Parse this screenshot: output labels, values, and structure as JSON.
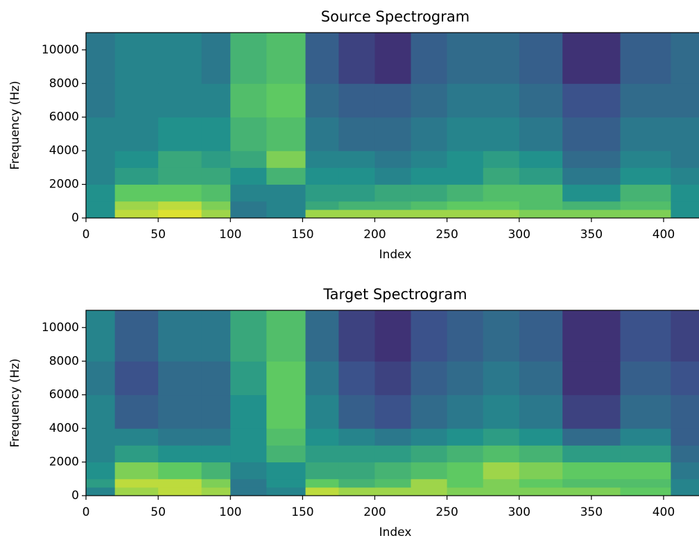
{
  "chart_data": [
    {
      "type": "heatmap",
      "title": "Source Spectrogram",
      "xlabel": "Index",
      "ylabel": "Frequency (Hz)",
      "colormap": "viridis",
      "xlim": [
        0,
        425
      ],
      "ylim": [
        0,
        11025
      ],
      "xticks": [
        0,
        50,
        100,
        150,
        200,
        250,
        300,
        350,
        400
      ],
      "yticks": [
        0,
        2000,
        4000,
        6000,
        8000,
        10000
      ],
      "x_edges": [
        0,
        20,
        50,
        80,
        100,
        125,
        152,
        175,
        200,
        225,
        250,
        275,
        300,
        330,
        370,
        405,
        425
      ],
      "y_edges": [
        0,
        500,
        1000,
        2000,
        3000,
        4000,
        6000,
        8000,
        11025
      ],
      "z": [
        [
          0.5,
          0.9,
          0.95,
          0.85,
          0.4,
          0.45,
          0.85,
          0.85,
          0.85,
          0.85,
          0.85,
          0.85,
          0.8,
          0.8,
          0.8,
          0.5
        ],
        [
          0.5,
          0.85,
          0.9,
          0.8,
          0.4,
          0.45,
          0.6,
          0.65,
          0.65,
          0.7,
          0.75,
          0.75,
          0.7,
          0.65,
          0.7,
          0.5
        ],
        [
          0.5,
          0.75,
          0.75,
          0.7,
          0.45,
          0.45,
          0.55,
          0.55,
          0.6,
          0.6,
          0.65,
          0.7,
          0.7,
          0.5,
          0.65,
          0.5
        ],
        [
          0.45,
          0.55,
          0.6,
          0.6,
          0.5,
          0.65,
          0.5,
          0.5,
          0.45,
          0.5,
          0.5,
          0.6,
          0.55,
          0.4,
          0.5,
          0.45
        ],
        [
          0.45,
          0.5,
          0.6,
          0.55,
          0.6,
          0.8,
          0.45,
          0.45,
          0.4,
          0.45,
          0.5,
          0.55,
          0.5,
          0.35,
          0.45,
          0.4
        ],
        [
          0.45,
          0.45,
          0.5,
          0.5,
          0.65,
          0.7,
          0.4,
          0.35,
          0.35,
          0.4,
          0.45,
          0.45,
          0.4,
          0.3,
          0.4,
          0.4
        ],
        [
          0.4,
          0.45,
          0.45,
          0.45,
          0.7,
          0.75,
          0.35,
          0.3,
          0.3,
          0.35,
          0.4,
          0.4,
          0.35,
          0.25,
          0.35,
          0.35
        ],
        [
          0.4,
          0.45,
          0.45,
          0.4,
          0.65,
          0.7,
          0.3,
          0.2,
          0.15,
          0.3,
          0.35,
          0.35,
          0.3,
          0.15,
          0.3,
          0.35
        ]
      ]
    },
    {
      "type": "heatmap",
      "title": "Target Spectrogram",
      "xlabel": "Index",
      "ylabel": "Frequency (Hz)",
      "colormap": "viridis",
      "xlim": [
        0,
        425
      ],
      "ylim": [
        0,
        11025
      ],
      "xticks": [
        0,
        50,
        100,
        150,
        200,
        250,
        300,
        350,
        400
      ],
      "yticks": [
        0,
        2000,
        4000,
        6000,
        8000,
        10000
      ],
      "x_edges": [
        0,
        20,
        50,
        80,
        100,
        125,
        152,
        175,
        200,
        225,
        250,
        275,
        300,
        330,
        370,
        405,
        425
      ],
      "y_edges": [
        0,
        500,
        1000,
        2000,
        3000,
        4000,
        6000,
        8000,
        11025
      ],
      "z": [
        [
          0.45,
          0.85,
          0.9,
          0.85,
          0.4,
          0.45,
          0.9,
          0.85,
          0.85,
          0.85,
          0.8,
          0.8,
          0.8,
          0.8,
          0.75,
          0.45
        ],
        [
          0.55,
          0.9,
          0.9,
          0.8,
          0.4,
          0.5,
          0.75,
          0.65,
          0.7,
          0.85,
          0.75,
          0.8,
          0.75,
          0.7,
          0.7,
          0.45
        ],
        [
          0.5,
          0.8,
          0.75,
          0.65,
          0.45,
          0.5,
          0.6,
          0.6,
          0.65,
          0.7,
          0.75,
          0.85,
          0.8,
          0.75,
          0.75,
          0.4
        ],
        [
          0.45,
          0.55,
          0.5,
          0.5,
          0.5,
          0.65,
          0.55,
          0.55,
          0.55,
          0.6,
          0.65,
          0.7,
          0.65,
          0.55,
          0.55,
          0.35
        ],
        [
          0.45,
          0.45,
          0.4,
          0.4,
          0.5,
          0.7,
          0.5,
          0.45,
          0.4,
          0.45,
          0.5,
          0.55,
          0.5,
          0.35,
          0.45,
          0.3
        ],
        [
          0.45,
          0.3,
          0.35,
          0.35,
          0.5,
          0.75,
          0.45,
          0.3,
          0.25,
          0.35,
          0.4,
          0.45,
          0.4,
          0.2,
          0.35,
          0.3
        ],
        [
          0.4,
          0.25,
          0.35,
          0.35,
          0.55,
          0.75,
          0.4,
          0.25,
          0.2,
          0.3,
          0.35,
          0.4,
          0.35,
          0.15,
          0.3,
          0.25
        ],
        [
          0.45,
          0.3,
          0.4,
          0.4,
          0.6,
          0.7,
          0.35,
          0.2,
          0.15,
          0.25,
          0.3,
          0.35,
          0.3,
          0.15,
          0.25,
          0.2
        ]
      ]
    }
  ]
}
